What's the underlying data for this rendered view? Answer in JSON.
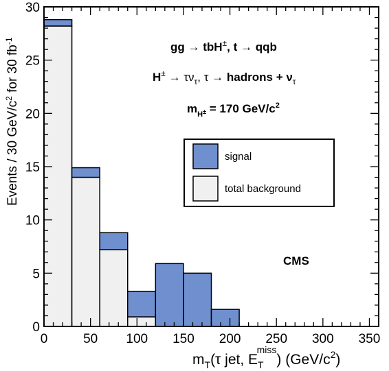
{
  "chart_data": {
    "type": "bar",
    "bin_edges": [
      0,
      30,
      60,
      90,
      120,
      150,
      180,
      210
    ],
    "series": [
      {
        "name": "total background",
        "stack_base": true,
        "color": "#f0f0f0",
        "values": [
          28.2,
          14.0,
          7.2,
          0.9,
          0.0,
          0.0,
          0.0
        ]
      },
      {
        "name": "signal",
        "color": "#6f8fcf",
        "values": [
          0.6,
          0.9,
          1.6,
          2.4,
          5.9,
          5.0,
          1.6
        ]
      }
    ],
    "xlim": [
      0,
      360
    ],
    "ylim": [
      0,
      30
    ],
    "xticks": [
      "0",
      "50",
      "100",
      "150",
      "200",
      "250",
      "300",
      "350"
    ],
    "xtick_values": [
      0,
      50,
      100,
      150,
      200,
      250,
      300,
      350
    ],
    "yticks": [
      "0",
      "5",
      "10",
      "15",
      "20",
      "25",
      "30"
    ],
    "ytick_values": [
      0,
      5,
      10,
      15,
      20,
      25,
      30
    ],
    "xlabel": {
      "prefix": "m",
      "prefix_sub": "T",
      "mid": "(τ jet, E",
      "mid_sub": "T",
      "mid_sup": "miss",
      "suffix": ") (GeV/c",
      "suffix_sup": "2",
      "end": ")"
    },
    "ylabel": {
      "text1": "Events / 30 GeV/c",
      "sup1": "2",
      "text2": " for 30 fb",
      "sup2": "-1"
    },
    "annotations": {
      "process": {
        "a": "gg → tbH",
        "a_sup": "±",
        "b": ", t → qqb"
      },
      "decay": {
        "a": "H",
        "a_sup": "±",
        "b": " → τν",
        "b_sub": "τ",
        "c": ", τ → ",
        "d": "hadrons + ν",
        "d_sub": "τ"
      },
      "mass": {
        "a": "m",
        "a_sub": "H",
        "a_subsup": "±",
        "b": " = 170 GeV/c",
        "b_sup": "2"
      },
      "experiment": "CMS"
    },
    "legend": {
      "placement": "upper-right",
      "entries": [
        {
          "label": "signal",
          "color": "#6f8fcf"
        },
        {
          "label": "total background",
          "color": "#f0f0f0"
        }
      ]
    }
  }
}
